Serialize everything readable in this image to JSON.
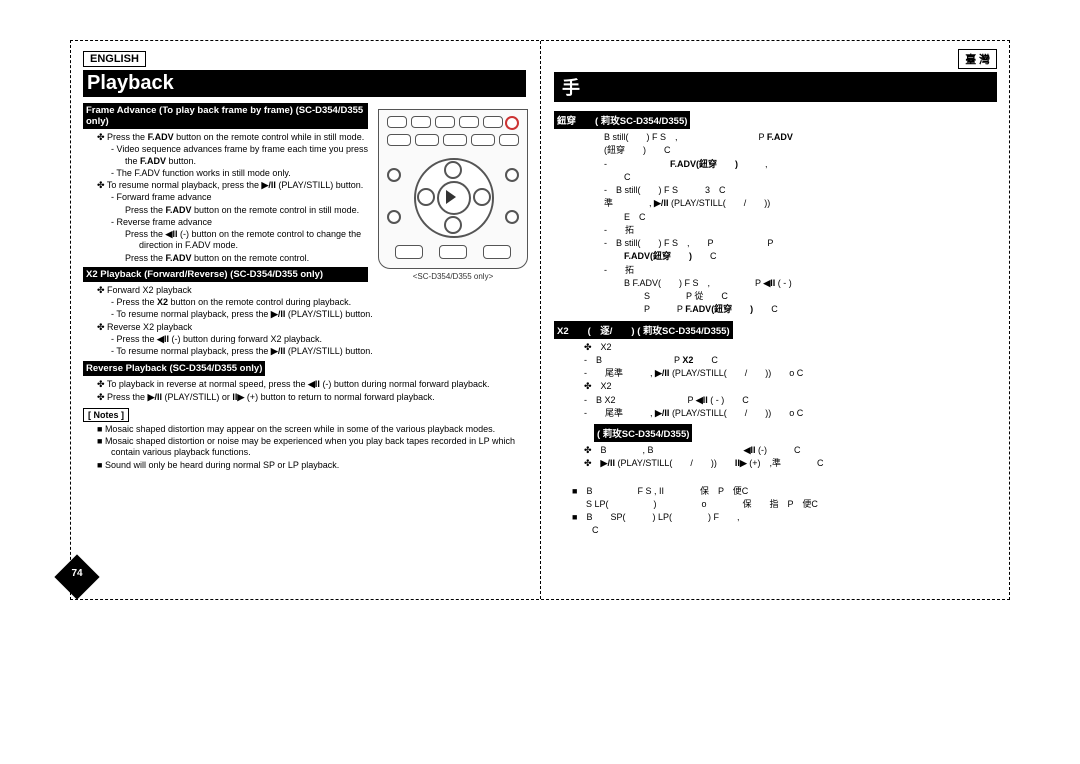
{
  "left": {
    "lang": "ENGLISH",
    "title": "Playback",
    "sec1": "Frame Advance (To play back frame by frame) (SC-D354/D355 only)",
    "p1": "Press the <b>F.ADV</b> button on the remote control while in still mode.",
    "p2": "Video sequence advances frame by frame each time you press the <b>F.ADV</b> button.",
    "p3": "The F.ADV function works in still mode only.",
    "p4": "To resume normal playback, press the <b class='sym'>▶/II</b> (PLAY/STILL) button.",
    "p5": "Forward frame advance",
    "p6": "Press the <b>F.ADV</b> button on the remote control in still mode.",
    "p7": "Reverse frame advance",
    "p8": "Press the <b class='sym'>◀II</b> (-) button on the remote control to change the direction in F.ADV mode.",
    "p9": "Press the <b>F.ADV</b> button on the remote control.",
    "sec2": "X2 Playback (Forward/Reverse) (SC-D354/D355 only)",
    "p10": "Forward X2 playback",
    "p11": "Press the <b>X2</b> button on the remote control during playback.",
    "p12": "To resume normal playback, press the <b class='sym'>▶/II</b> (PLAY/STILL) button.",
    "p13": "Reverse X2 playback",
    "p14": "Press the <b class='sym'>◀II</b> (-) button during forward X2 playback.",
    "p15": "To resume normal playback, press the <b class='sym'>▶/II</b> (PLAY/STILL) button.",
    "sec3": "Reverse Playback (SC-D354/D355 only)",
    "p16": "To playback in reverse at normal speed, press the <b class='sym'>◀II</b> (-) button during normal forward playback.",
    "p17": "Press the <b class='sym'>▶/II</b> (PLAY/STILL) or <b class='sym'>II▶</b> (+) button to return to normal forward playback.",
    "notes": "[ Notes ]",
    "n1": "Mosaic shaped distortion may appear on the screen while in some of the various playback modes.",
    "n2": "Mosaic shaped distortion or noise may be experienced when you play back tapes recorded in LP which contain various playback functions.",
    "n3": "Sound will only be heard during normal SP or LP playback.",
    "remote_caption": "<SC-D354/D355 only>",
    "pagenum": "74"
  },
  "right": {
    "lang": "臺 灣",
    "title": "手",
    "sec1": "鈕穿　　( 莉玫SC-D354/D355)",
    "q1": "B still(　　) F S　,　　　　　　　　　P <b>F.ADV</b>",
    "q2": "(鈕穿　　)　　C",
    "q3": "-　　　　　　　<b>F.ADV(鈕穿　　)</b>　　　,",
    "q4": "C",
    "q5": "-　B still(　　) F S　　　3　C",
    "q6": "準　　　　, <b class='sym'>▶/II</b> (PLAY/STILL(　　/　　))",
    "q7": "E　C",
    "q8": "-　　拓",
    "q9": "-　B still(　　) F S　,　　P　　　　　　P",
    "q10": "<b>F.ADV(鈕穿　　)</b>　　C",
    "q11": "-　　拓",
    "q12": "B F.ADV(　　) F S　,　　　　　P <b class='sym'>◀II</b> ( - )",
    "q13": "S　　　　P 從　　C",
    "q14": "P　　　P <b>F.ADV(鈕穿　　)</b>　　C",
    "sec2": "X2　　(　逐/　　) ( 莉玫SC-D354/D355)",
    "q15": "X2",
    "q16": "-　B　　　　　　　　P <b>X2</b>　　C",
    "q17": "-　　尾準　　　, <b class='sym'>▶/II</b> (PLAY/STILL(　　/　　))　　o C",
    "q18": "X2",
    "q19": "-　B X2　　　　　　　　P <b class='sym'>◀II</b> ( - )　　C",
    "q20": "-　　尾準　　　, <b class='sym'>▶/II</b> (PLAY/STILL(　　/　　))　　o C",
    "sec3": "( 莉玫SC-D354/D355)",
    "q21": "B　　　　, B　　　　　　　　　　<b class='sym'>◀II</b> (-)　　　C",
    "q22": "<b class='sym'>▶/II</b> (PLAY/STILL(　　/　　))　　<b class='sym'>II▶</b> (+)　,準　　　　C",
    "q23": "B　　　　　F S , II　　　　保　P　便C",
    "q24": "S LP(　　　　　)　　　　　o　　　　保　　指　P　便C",
    "q25": "B　　SP(　　　) LP(　　　　) F　　,",
    "q26": "C"
  }
}
